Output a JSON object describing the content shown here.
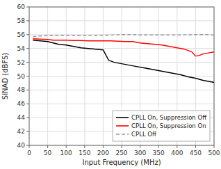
{
  "chart_data": {
    "type": "line",
    "xlabel": "Input Frequency (MHz)",
    "ylabel": "SINAD (dBFS)",
    "xlim": [
      0,
      500
    ],
    "ylim": [
      40,
      60
    ],
    "xticks": [
      0,
      50,
      100,
      150,
      200,
      250,
      300,
      350,
      400,
      450,
      500
    ],
    "yticks": [
      40,
      42,
      44,
      46,
      48,
      50,
      52,
      54,
      56,
      58,
      60
    ],
    "grid": true,
    "legend": "lower right",
    "series": [
      {
        "name": "CPLL On, Suppression Off",
        "color": "#000000",
        "line_style": "solid",
        "x": [
          10,
          50,
          65,
          80,
          100,
          120,
          140,
          160,
          180,
          200,
          215,
          230,
          250,
          270,
          290,
          310,
          330,
          350,
          370,
          390,
          410,
          430,
          450,
          470,
          490,
          500
        ],
        "values": [
          55.2,
          55.0,
          54.8,
          54.6,
          54.5,
          54.3,
          54.1,
          54.0,
          53.9,
          53.8,
          52.3,
          52.0,
          51.8,
          51.6,
          51.4,
          51.2,
          51.0,
          50.8,
          50.6,
          50.4,
          50.2,
          49.9,
          49.7,
          49.4,
          49.2,
          49.1
        ]
      },
      {
        "name": "CPLL On, Suppression On",
        "color": "#ff0000",
        "line_style": "solid",
        "x": [
          10,
          50,
          65,
          80,
          100,
          120,
          140,
          160,
          180,
          200,
          220,
          240,
          260,
          280,
          300,
          320,
          340,
          360,
          380,
          400,
          420,
          440,
          450,
          460,
          470,
          480,
          490,
          500
        ],
        "values": [
          55.4,
          55.3,
          55.2,
          55.2,
          55.2,
          55.15,
          55.15,
          55.1,
          55.1,
          55.1,
          55.1,
          55.05,
          55.0,
          55.0,
          54.8,
          54.7,
          54.6,
          54.5,
          54.3,
          54.1,
          53.9,
          53.5,
          52.9,
          53.0,
          53.2,
          53.3,
          53.4,
          53.5
        ]
      },
      {
        "name": "CPLL Off",
        "color": "#999999",
        "line_style": "dashed",
        "x": [
          10,
          30,
          50,
          80,
          100,
          150,
          200,
          250,
          280,
          300,
          350,
          400,
          450,
          480,
          500
        ],
        "values": [
          55.7,
          55.8,
          55.85,
          55.85,
          55.85,
          55.85,
          55.9,
          56.0,
          56.0,
          55.95,
          55.95,
          55.95,
          56.0,
          56.0,
          55.95
        ]
      }
    ]
  }
}
